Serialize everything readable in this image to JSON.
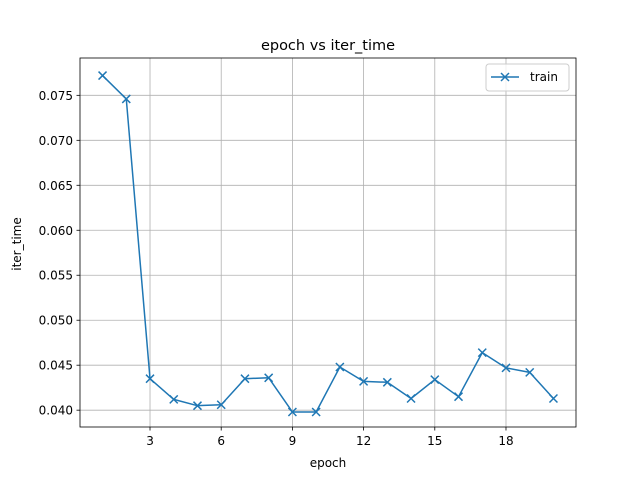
{
  "chart_data": {
    "type": "line",
    "title": "epoch vs iter_time",
    "xlabel": "epoch",
    "ylabel": "iter_time",
    "xlim": [
      0.05,
      20.95
    ],
    "ylim": [
      0.03813,
      0.07915
    ],
    "xticks": [
      3,
      6,
      9,
      12,
      15,
      18
    ],
    "yticks": [
      0.04,
      0.045,
      0.05,
      0.055,
      0.06,
      0.065,
      0.07,
      0.075
    ],
    "ytick_labels": [
      "0.040",
      "0.045",
      "0.050",
      "0.055",
      "0.060",
      "0.065",
      "0.070",
      "0.075"
    ],
    "grid": true,
    "legend_position": "upper right",
    "series": [
      {
        "name": "train",
        "color": "#1f77b4",
        "marker": "x",
        "x": [
          1,
          2,
          3,
          4,
          5,
          6,
          7,
          8,
          9,
          10,
          11,
          12,
          13,
          14,
          15,
          16,
          17,
          18,
          19,
          20
        ],
        "y": [
          0.0772,
          0.0746,
          0.0435,
          0.0412,
          0.0405,
          0.0406,
          0.0435,
          0.0436,
          0.0398,
          0.0398,
          0.0448,
          0.0432,
          0.0431,
          0.0413,
          0.0434,
          0.0415,
          0.0464,
          0.0447,
          0.0442,
          0.0413
        ]
      }
    ]
  }
}
